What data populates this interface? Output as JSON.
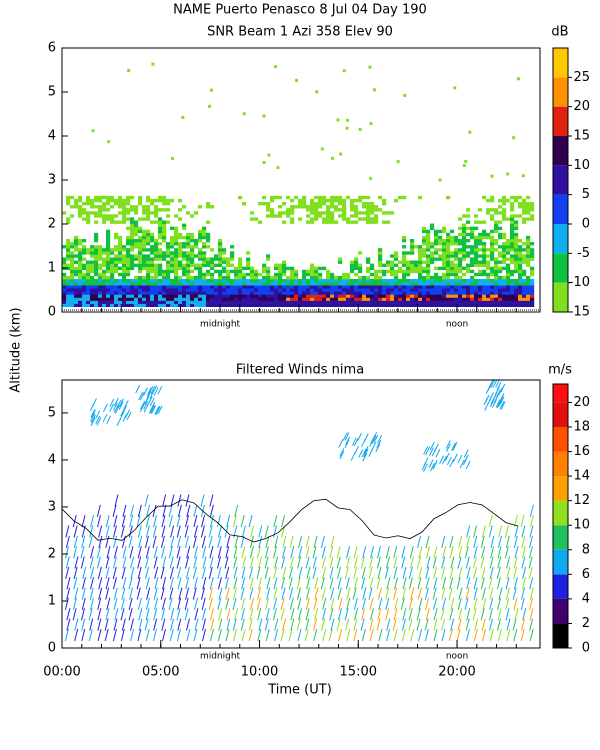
{
  "chart_data": [
    {
      "type": "heatmap",
      "title": "NAME Puerto Penasco    8 Jul 04 Day 190",
      "subtitle": "SNR Beam 1 Azi 358 Elev 90",
      "y_label": "Altitude (km)",
      "xlim": [
        0,
        24.2
      ],
      "xticks": [
        {
          "value": 8,
          "label": "midnight"
        },
        {
          "value": 20,
          "label": "noon"
        }
      ],
      "ylim": [
        0,
        6
      ],
      "yticks": [
        0,
        1,
        2,
        3,
        4,
        5,
        6
      ],
      "colorbar": {
        "label": "dB",
        "lim": [
          -15,
          30
        ],
        "bins": [
          -15,
          -10,
          -5,
          0,
          5,
          10,
          15,
          20,
          25,
          30
        ],
        "ticks": [
          -15,
          -10,
          -5,
          0,
          5,
          10,
          15,
          20,
          25
        ],
        "colors": [
          "#80e020",
          "#10c040",
          "#10b0f0",
          "#1040f0",
          "#3010a0",
          "#300050",
          "#e02010",
          "#ff9000",
          "#ffc800"
        ]
      }
    },
    {
      "type": "barbs",
      "title": "Filtered Winds nima",
      "x_label": "Time (UT)",
      "xlim": [
        0,
        24.2
      ],
      "xticks": [
        {
          "value": 0,
          "label": "00:00"
        },
        {
          "value": 5,
          "label": "05:00"
        },
        {
          "value": 10,
          "label": "10:00"
        },
        {
          "value": 15,
          "label": "15:00"
        },
        {
          "value": 20,
          "label": "20:00"
        }
      ],
      "ylim": [
        0,
        5.7
      ],
      "yticks": [
        0,
        1,
        2,
        3,
        4,
        5
      ],
      "colorbar": {
        "label": "m/s",
        "lim": [
          0,
          21.5
        ],
        "bins": [
          0,
          2,
          4,
          6,
          8,
          10,
          12,
          14,
          16,
          18,
          20,
          21.5
        ],
        "ticks": [
          0,
          2,
          4,
          6,
          8,
          10,
          12,
          14,
          16,
          18,
          20
        ],
        "colors": [
          "#000000",
          "#400070",
          "#2020e0",
          "#10a8f0",
          "#20c060",
          "#90e020",
          "#ffa000",
          "#ff8000",
          "#ff5000",
          "#e01010",
          "#ff1010"
        ]
      }
    }
  ]
}
